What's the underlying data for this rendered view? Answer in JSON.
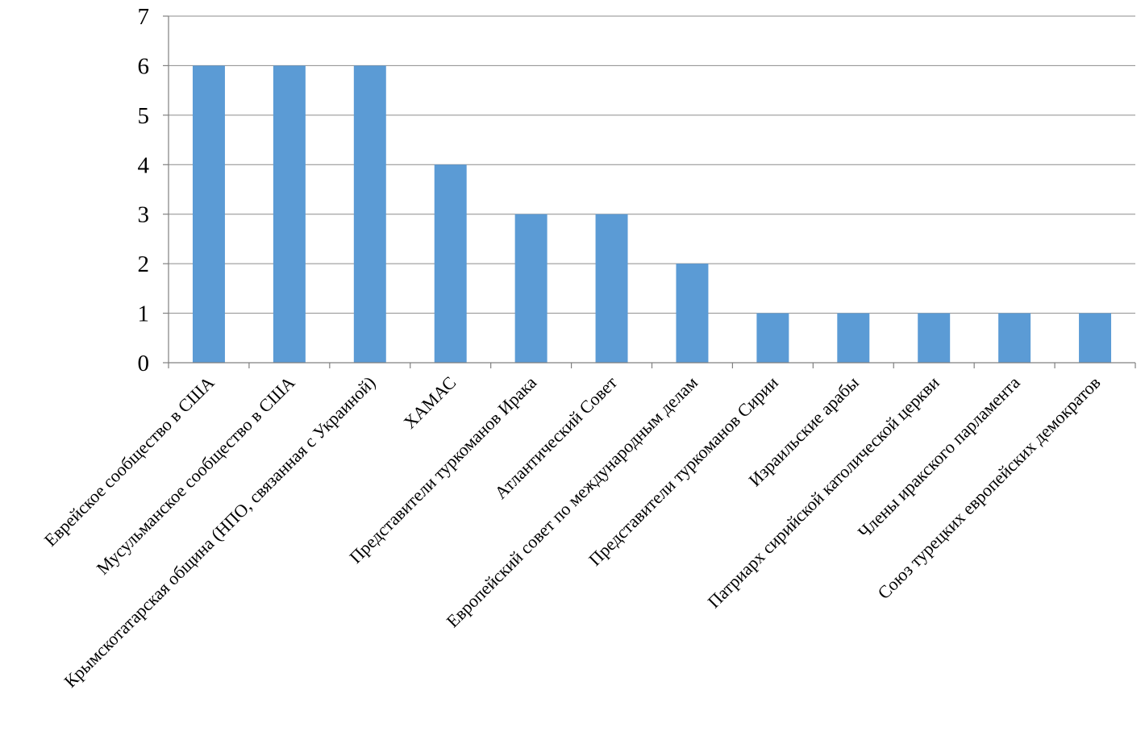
{
  "colors": {
    "bar": "#5b9bd5",
    "grid": "#8c8c8c",
    "axis": "#808080"
  },
  "chart_data": {
    "type": "bar",
    "title": "",
    "xlabel": "",
    "ylabel": "",
    "ylim": [
      0,
      7
    ],
    "yticks": [
      0,
      1,
      2,
      3,
      4,
      5,
      6,
      7
    ],
    "grid": true,
    "legend": "none",
    "categories": [
      "Еврейское сообщество в США",
      "Мусульманское сообщество в США",
      "Крымскотатарская община (НПО, связанная с Украиной)",
      "ХАМАС",
      "Представители туркоманов Ирака",
      "Атлантический  Совет",
      "Европейский совет по международным делам",
      "Представители туркоманов Сирии",
      "Израильские арабы",
      "Патриарх  сирийской  католической церкви",
      "Члены иракского парламента",
      "Союз турецких европейских  демократов"
    ],
    "values": [
      6,
      6,
      6,
      4,
      3,
      3,
      2,
      1,
      1,
      1,
      1,
      1
    ]
  }
}
